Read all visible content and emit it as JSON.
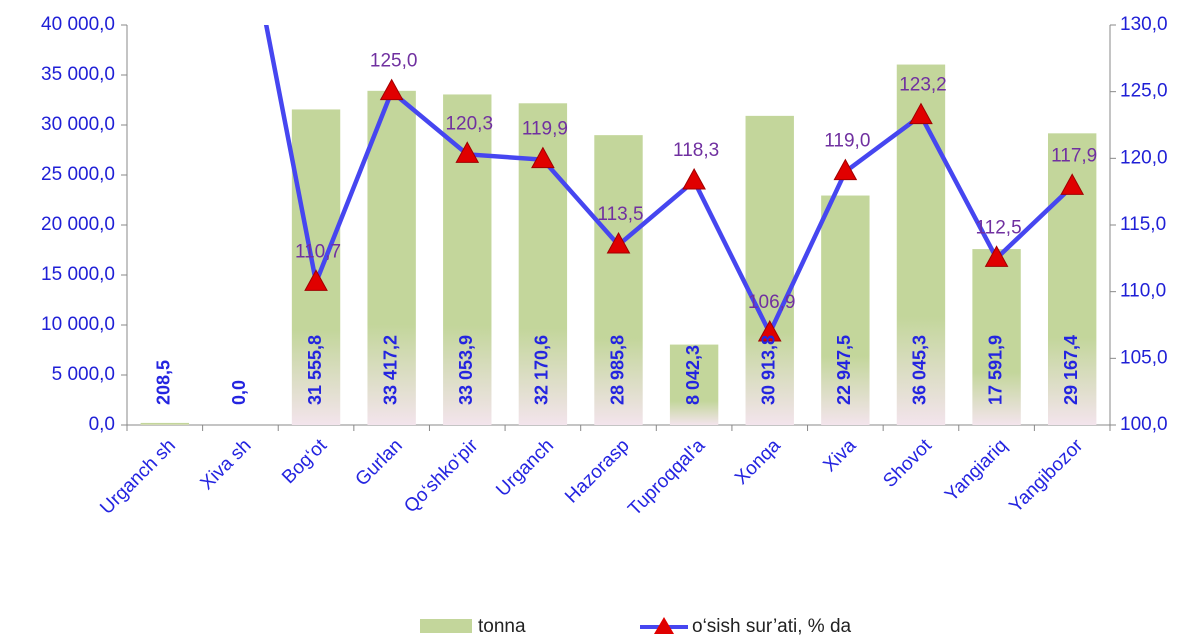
{
  "chart_data": {
    "type": "bar-line",
    "categories": [
      "Urganch sh",
      "Xiva sh",
      "Bog‘ot",
      "Gurlan",
      "Qo‘shko‘pir",
      "Urganch",
      "Hazorasp",
      "Tuproqqal'a",
      "Xonqa",
      "Xiva",
      "Shovot",
      "Yangiariq",
      "Yangibozor"
    ],
    "series": [
      {
        "name": "tonna",
        "color": "#c3d69b",
        "values": [
          208.5,
          0,
          31555.8,
          33417.2,
          33053.9,
          32170.6,
          28985.8,
          8042.3,
          30913.8,
          22947.5,
          36045.3,
          17591.9,
          29167.4
        ],
        "value_labels": [
          "208,5",
          "0,0",
          "31 555,8",
          "33 417,2",
          "33 053,9",
          "32 170,6",
          "28 985,8",
          "8 042,3",
          "30 913,8",
          "22 947,5",
          "36 045,3",
          "17 591,9",
          "29 167,4"
        ]
      },
      {
        "name": "o‘sish sur’ati, % da",
        "color": "#4646f0",
        "marker_color": "#e00000",
        "axis": "y2",
        "values": [
          null,
          140,
          110.7,
          125.0,
          120.3,
          119.9,
          113.5,
          118.3,
          106.9,
          119.0,
          123.2,
          112.5,
          117.9
        ],
        "value_labels": [
          null,
          null,
          "110,7",
          "125,0",
          "120,3",
          "119,9",
          "113,5",
          "118,3",
          "106,9",
          "119,0",
          "123,2",
          "112,5",
          "117,9"
        ]
      }
    ],
    "ylim": [
      0,
      40000
    ],
    "yticks": [
      {
        "value": 0,
        "label": "0,0"
      },
      {
        "value": 5000,
        "label": "5 000,0"
      },
      {
        "value": 10000,
        "label": "10 000,0"
      },
      {
        "value": 15000,
        "label": "15 000,0"
      },
      {
        "value": 20000,
        "label": "20 000,0"
      },
      {
        "value": 25000,
        "label": "25 000,0"
      },
      {
        "value": 30000,
        "label": "30 000,0"
      },
      {
        "value": 35000,
        "label": "35 000,0"
      },
      {
        "value": 40000,
        "label": "40 000,0"
      }
    ],
    "y2lim": [
      100,
      130
    ],
    "y2ticks": [
      {
        "value": 100,
        "label": "100,0"
      },
      {
        "value": 105,
        "label": "105,0"
      },
      {
        "value": 110,
        "label": "110,0"
      },
      {
        "value": 115,
        "label": "115,0"
      },
      {
        "value": 120,
        "label": "120,0"
      },
      {
        "value": 125,
        "label": "125,0"
      },
      {
        "value": 130,
        "label": "130,0"
      }
    ]
  }
}
